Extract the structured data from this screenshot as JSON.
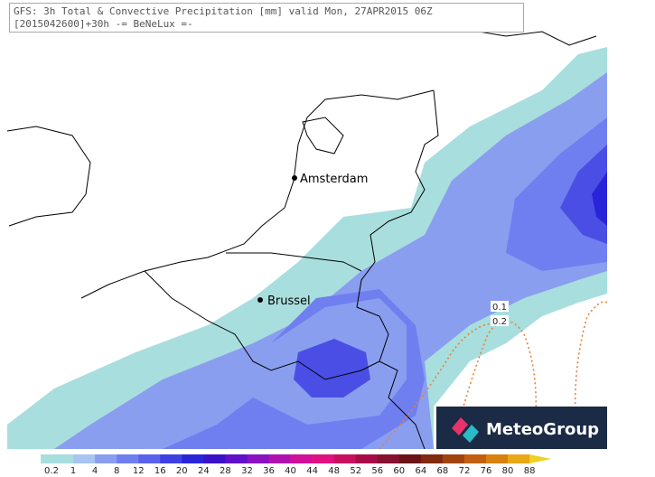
{
  "header": {
    "line1": "GFS: 3h Total & Convective Precipitation [mm] valid Mon, 27APR2015 06Z",
    "line2": "[2015042600]+30h -= BeNeLux =-"
  },
  "cities": [
    {
      "name": "Amsterdam"
    },
    {
      "name": "Brussel"
    }
  ],
  "contour_labels": [
    "0.1",
    "0.2"
  ],
  "logo": {
    "text": "MeteoGroup"
  },
  "legend": {
    "labels": [
      "0.2",
      "1",
      "4",
      "8",
      "12",
      "16",
      "20",
      "24",
      "28",
      "32",
      "36",
      "40",
      "44",
      "48",
      "52",
      "56",
      "60",
      "64",
      "68",
      "72",
      "76",
      "80",
      "88"
    ],
    "colors": [
      "#a8dede",
      "#a8c4f0",
      "#8a9ef0",
      "#6f7ff0",
      "#5a62ec",
      "#3f40e0",
      "#2a24d8",
      "#3a10c8",
      "#6010c8",
      "#8a10c0",
      "#b010b0",
      "#d0109a",
      "#e01080",
      "#c81060",
      "#a80c48",
      "#881030",
      "#6a1418",
      "#802a10",
      "#a04410",
      "#c06010",
      "#d88010",
      "#e8a818",
      "#f0d020"
    ]
  }
}
